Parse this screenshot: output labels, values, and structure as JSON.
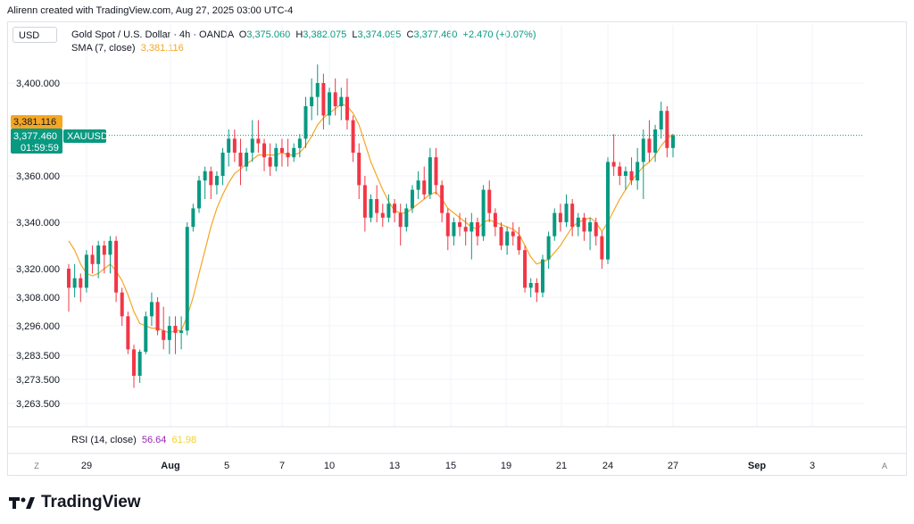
{
  "header": {
    "attribution": "Alirenn created with TradingView.com, Aug 27, 2025 03:00 UTC-4"
  },
  "currency_button": "USD",
  "legend": {
    "symbol": "Gold Spot / U.S. Dollar · 4h · OANDA",
    "o_label": "O",
    "o_value": "3,375.060",
    "h_label": "H",
    "h_value": "3,382.075",
    "l_label": "L",
    "l_value": "3,374.095",
    "c_label": "C",
    "c_value": "3,377.460",
    "change": "+2.470 (+0.07%)",
    "sma_label": "SMA (7, close)",
    "sma_value": "3,381.116"
  },
  "rsi": {
    "label": "RSI (14, close)",
    "value1": "56.64",
    "value2": "61.98"
  },
  "price_labels": {
    "sma": "3,381.116",
    "last": "3,377.460",
    "countdown": "01:59:59",
    "ticker": "XAUUSD"
  },
  "time_axis": {
    "left_btn": "Z",
    "right_btn": "A",
    "ticks": [
      {
        "label": "29",
        "bold": false
      },
      {
        "label": "Aug",
        "bold": true
      },
      {
        "label": "5",
        "bold": false
      },
      {
        "label": "7",
        "bold": false
      },
      {
        "label": "10",
        "bold": false
      },
      {
        "label": "13",
        "bold": false
      },
      {
        "label": "15",
        "bold": false
      },
      {
        "label": "19",
        "bold": false
      },
      {
        "label": "21",
        "bold": false
      },
      {
        "label": "24",
        "bold": false
      },
      {
        "label": "27",
        "bold": false
      },
      {
        "label": "Sep",
        "bold": true
      },
      {
        "label": "3",
        "bold": false
      }
    ]
  },
  "branding": "TradingView",
  "colors": {
    "up": "#089981",
    "down": "#f23645",
    "sma": "#f5a623",
    "sma_label_bg": "#f5a623",
    "last_label_bg": "#089981"
  },
  "chart_data": {
    "type": "candlestick",
    "title": "Gold Spot / U.S. Dollar · 4h · OANDA",
    "y_ticks": [
      "3,400.000",
      "3,360.000",
      "3,340.000",
      "3,320.000",
      "3,308.000",
      "3,296.000",
      "3,283.500",
      "3,273.500",
      "3,263.500"
    ],
    "y_tick_values": [
      3400,
      3360,
      3340,
      3320,
      3308,
      3296,
      3283.5,
      3273.5,
      3263.5
    ],
    "ohlc": [
      [
        3320,
        3322,
        3302,
        3312
      ],
      [
        3312,
        3322,
        3308,
        3316
      ],
      [
        3316,
        3318,
        3306,
        3312
      ],
      [
        3312,
        3328,
        3310,
        3326
      ],
      [
        3326,
        3330,
        3318,
        3322
      ],
      [
        3322,
        3332,
        3316,
        3330
      ],
      [
        3330,
        3332,
        3318,
        3326
      ],
      [
        3326,
        3334,
        3318,
        3332
      ],
      [
        3332,
        3334,
        3306,
        3310
      ],
      [
        3310,
        3312,
        3296,
        3300
      ],
      [
        3300,
        3302,
        3284,
        3286
      ],
      [
        3286,
        3288,
        3270,
        3275
      ],
      [
        3275,
        3286,
        3272,
        3285
      ],
      [
        3285,
        3302,
        3284,
        3300
      ],
      [
        3300,
        3310,
        3296,
        3306
      ],
      [
        3306,
        3308,
        3292,
        3294
      ],
      [
        3294,
        3304,
        3286,
        3290
      ],
      [
        3290,
        3300,
        3284,
        3296
      ],
      [
        3296,
        3300,
        3284,
        3293
      ],
      [
        3293,
        3300,
        3286,
        3294
      ],
      [
        3294,
        3340,
        3292,
        3338
      ],
      [
        3338,
        3348,
        3336,
        3346
      ],
      [
        3346,
        3360,
        3344,
        3358
      ],
      [
        3358,
        3364,
        3350,
        3362
      ],
      [
        3362,
        3364,
        3350,
        3356
      ],
      [
        3356,
        3362,
        3352,
        3360
      ],
      [
        3360,
        3372,
        3356,
        3370
      ],
      [
        3370,
        3380,
        3364,
        3376
      ],
      [
        3376,
        3380,
        3366,
        3370
      ],
      [
        3370,
        3376,
        3356,
        3364
      ],
      [
        3364,
        3372,
        3362,
        3370
      ],
      [
        3370,
        3384,
        3366,
        3376
      ],
      [
        3376,
        3384,
        3370,
        3374
      ],
      [
        3374,
        3376,
        3362,
        3368
      ],
      [
        3368,
        3374,
        3360,
        3364
      ],
      [
        3364,
        3374,
        3362,
        3372
      ],
      [
        3372,
        3376,
        3364,
        3370
      ],
      [
        3370,
        3376,
        3364,
        3368
      ],
      [
        3368,
        3374,
        3366,
        3372
      ],
      [
        3372,
        3378,
        3368,
        3376
      ],
      [
        3376,
        3394,
        3372,
        3390
      ],
      [
        3390,
        3402,
        3384,
        3394
      ],
      [
        3394,
        3408,
        3386,
        3400
      ],
      [
        3400,
        3404,
        3380,
        3386
      ],
      [
        3386,
        3398,
        3382,
        3396
      ],
      [
        3396,
        3402,
        3386,
        3390
      ],
      [
        3390,
        3398,
        3384,
        3394
      ],
      [
        3394,
        3402,
        3380,
        3384
      ],
      [
        3384,
        3386,
        3366,
        3370
      ],
      [
        3370,
        3374,
        3350,
        3356
      ],
      [
        3356,
        3360,
        3336,
        3342
      ],
      [
        3342,
        3352,
        3340,
        3350
      ],
      [
        3350,
        3356,
        3340,
        3344
      ],
      [
        3344,
        3348,
        3338,
        3342
      ],
      [
        3342,
        3352,
        3340,
        3348
      ],
      [
        3348,
        3350,
        3340,
        3344
      ],
      [
        3344,
        3348,
        3330,
        3338
      ],
      [
        3338,
        3348,
        3336,
        3346
      ],
      [
        3346,
        3356,
        3344,
        3354
      ],
      [
        3354,
        3362,
        3350,
        3358
      ],
      [
        3358,
        3364,
        3350,
        3352
      ],
      [
        3352,
        3372,
        3350,
        3368
      ],
      [
        3368,
        3372,
        3352,
        3356
      ],
      [
        3356,
        3358,
        3340,
        3344
      ],
      [
        3344,
        3346,
        3328,
        3334
      ],
      [
        3334,
        3342,
        3330,
        3340
      ],
      [
        3340,
        3344,
        3334,
        3338
      ],
      [
        3338,
        3342,
        3330,
        3336
      ],
      [
        3336,
        3344,
        3324,
        3340
      ],
      [
        3340,
        3342,
        3330,
        3334
      ],
      [
        3334,
        3356,
        3332,
        3354
      ],
      [
        3354,
        3358,
        3340,
        3344
      ],
      [
        3344,
        3346,
        3334,
        3338
      ],
      [
        3338,
        3340,
        3328,
        3330
      ],
      [
        3330,
        3338,
        3326,
        3336
      ],
      [
        3336,
        3340,
        3330,
        3334
      ],
      [
        3334,
        3338,
        3326,
        3328
      ],
      [
        3328,
        3330,
        3310,
        3312
      ],
      [
        3312,
        3316,
        3308,
        3314
      ],
      [
        3314,
        3316,
        3306,
        3310
      ],
      [
        3310,
        3326,
        3308,
        3324
      ],
      [
        3324,
        3336,
        3320,
        3334
      ],
      [
        3334,
        3346,
        3332,
        3344
      ],
      [
        3344,
        3348,
        3336,
        3340
      ],
      [
        3340,
        3352,
        3338,
        3348
      ],
      [
        3348,
        3350,
        3334,
        3338
      ],
      [
        3338,
        3344,
        3334,
        3342
      ],
      [
        3342,
        3344,
        3332,
        3336
      ],
      [
        3336,
        3342,
        3328,
        3340
      ],
      [
        3340,
        3342,
        3330,
        3334
      ],
      [
        3334,
        3336,
        3320,
        3324
      ],
      [
        3324,
        3368,
        3322,
        3366
      ],
      [
        3366,
        3378,
        3360,
        3364
      ],
      [
        3364,
        3366,
        3356,
        3360
      ],
      [
        3360,
        3364,
        3354,
        3362
      ],
      [
        3362,
        3368,
        3356,
        3358
      ],
      [
        3358,
        3372,
        3354,
        3366
      ],
      [
        3366,
        3380,
        3350,
        3376
      ],
      [
        3376,
        3384,
        3366,
        3370
      ],
      [
        3370,
        3382,
        3366,
        3380
      ],
      [
        3380,
        3392,
        3376,
        3388
      ],
      [
        3388,
        3390,
        3368,
        3372
      ],
      [
        3372,
        3378,
        3368,
        3377.46
      ]
    ],
    "sma": [
      3332,
      3328,
      3322,
      3318,
      3317,
      3318,
      3320,
      3322,
      3319,
      3315,
      3309,
      3302,
      3297,
      3296,
      3295,
      3295,
      3294,
      3293,
      3294,
      3294,
      3300,
      3308,
      3318,
      3328,
      3338,
      3346,
      3352,
      3357,
      3361,
      3363,
      3365,
      3367,
      3369,
      3369,
      3369,
      3369,
      3370,
      3369,
      3369,
      3370,
      3373,
      3377,
      3382,
      3385,
      3387,
      3389,
      3391,
      3390,
      3387,
      3382,
      3374,
      3366,
      3360,
      3354,
      3349,
      3345,
      3344,
      3344,
      3346,
      3348,
      3350,
      3352,
      3353,
      3350,
      3346,
      3344,
      3342,
      3340,
      3338,
      3337,
      3340,
      3341,
      3340,
      3339,
      3338,
      3337,
      3335,
      3330,
      3325,
      3322,
      3323,
      3324,
      3327,
      3330,
      3334,
      3338,
      3340,
      3341,
      3342,
      3340,
      3336,
      3340,
      3345,
      3350,
      3354,
      3358,
      3361,
      3364,
      3366,
      3369,
      3373,
      3376,
      3378
    ],
    "last_price": 3377.46,
    "sma_last": 3381.116
  }
}
